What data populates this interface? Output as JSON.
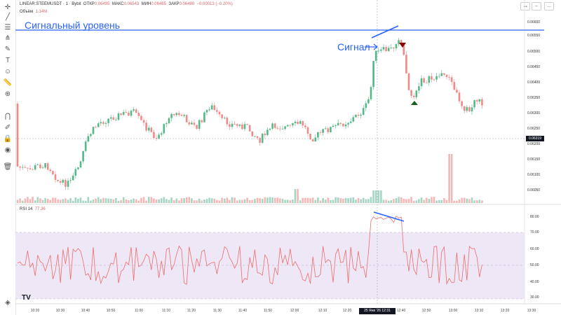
{
  "header": {
    "symbol": "LINEAR:STEEMUSDT · 1 · Bybit",
    "open_label": "ОТКР",
    "open_value": "0.06495",
    "high_label": "МАКС",
    "high_value": "0.06543",
    "low_label": "МИН",
    "low_value": "0.06465",
    "close_label": "ЗАКР",
    "close_value": "0.06480",
    "change_value": "−0.00013 (−0.20%)",
    "volume_label": "Объём",
    "volume_value": "1.14M"
  },
  "rsi_header": {
    "label": "RSI 14",
    "value": "77.36"
  },
  "annotations": {
    "level_label": "Сигнальный уровень",
    "signal_label": "Сигнал"
  },
  "current_price": "0.06319",
  "crosshair_time": "25 Янв '26   12:31",
  "price_axis": [
    "0.06600",
    "0.06550",
    "0.06500",
    "0.06450",
    "0.06400",
    "0.06350",
    "0.06300",
    "0.06250",
    "0.06200",
    "0.06150",
    "0.06100",
    "0.06050"
  ],
  "rsi_axis": [
    "80.00",
    "70.00",
    "60.00",
    "50.00",
    "40.00",
    "30.00"
  ],
  "time_axis": [
    "10:20",
    "10:30",
    "10:40",
    "10:50",
    "11:00",
    "11:10",
    "11:20",
    "11:30",
    "11:40",
    "11:50",
    "12:00",
    "12:10",
    "12:20",
    "12:40",
    "12:50",
    "13:00",
    "13:10",
    "13:20",
    "13:30"
  ],
  "colors": {
    "up": "#26a69a",
    "up_light": "#53b987",
    "down": "#ef5350",
    "down_light": "#f08a88",
    "level": "#2962ff",
    "rsi_line": "#f06b6b",
    "rsi_band": "#ede7f6"
  },
  "icons": [
    "crosshair-icon",
    "trend-line-icon",
    "horizontal-lines-icon",
    "fork-icon",
    "brush-icon",
    "text-icon",
    "emoji-icon",
    "ruler-icon",
    "zoom-icon",
    "magnet-icon",
    "lock-drawings-icon",
    "lock-icon",
    "eye-icon",
    "trash-icon",
    "layers-icon"
  ],
  "chart_data": {
    "type": "candlestick",
    "series": [
      {
        "name": "STEEMUSDT",
        "ohlc_first_last_visible": {
          "open": "0.06495",
          "high": "0.06543",
          "low": "0.06465",
          "close": "0.06480"
        }
      }
    ],
    "ylim": [
      0.0603,
      0.0662
    ],
    "rsi": {
      "period": 14,
      "last": 77.36,
      "ylim": [
        28,
        85
      ],
      "band": [
        30,
        70
      ]
    },
    "signal_level": 0.0656
  }
}
